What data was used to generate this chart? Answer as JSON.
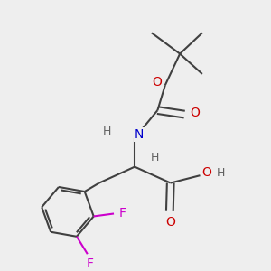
{
  "background_color": "#eeeeee",
  "bond_color": "#404040",
  "atom_colors": {
    "O": "#cc0000",
    "N": "#0000cc",
    "F": "#cc00cc",
    "H": "#606060",
    "C": "#404040"
  },
  "figsize": [
    3.0,
    3.0
  ],
  "dpi": 100
}
